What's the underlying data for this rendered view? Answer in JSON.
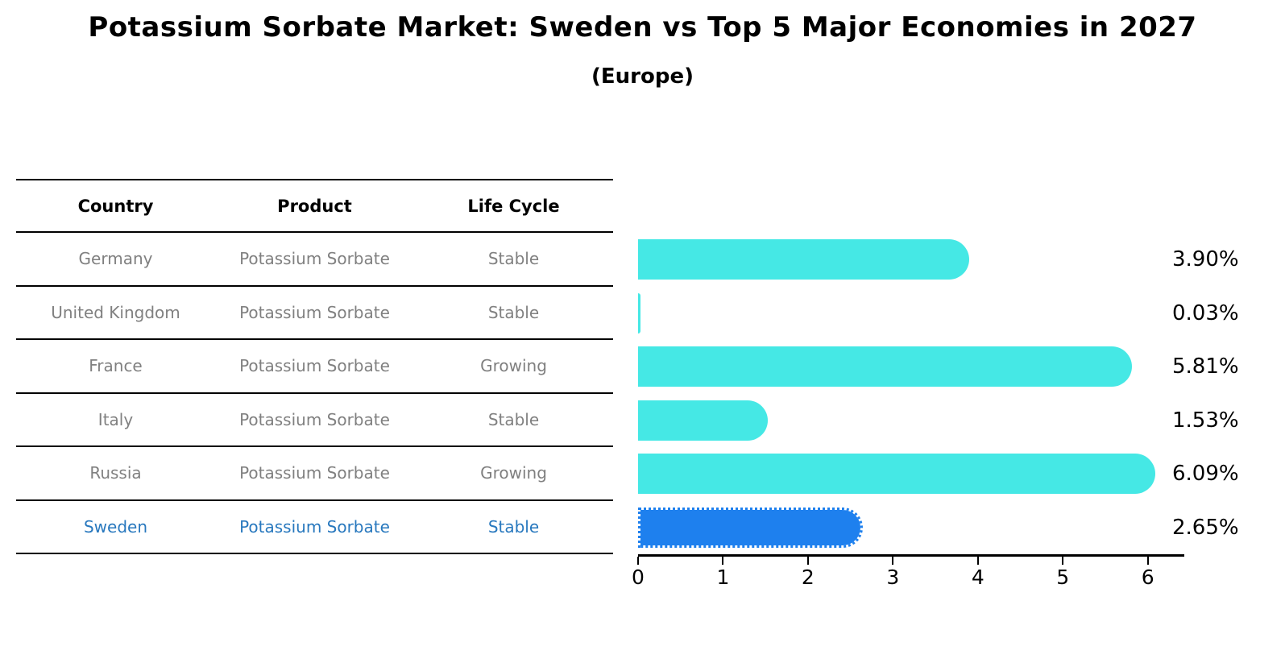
{
  "title": "Potassium Sorbate Market: Sweden vs Top 5 Major Economies in 2027",
  "subtitle": "(Europe)",
  "table": {
    "headers": [
      "Country",
      "Product",
      "Life Cycle"
    ],
    "rows": [
      {
        "country": "Germany",
        "product": "Potassium Sorbate",
        "life_cycle": "Stable",
        "highlight": false
      },
      {
        "country": "United Kingdom",
        "product": "Potassium Sorbate",
        "life_cycle": "Stable",
        "highlight": false
      },
      {
        "country": "France",
        "product": "Potassium Sorbate",
        "life_cycle": "Growing",
        "highlight": false
      },
      {
        "country": "Italy",
        "product": "Potassium Sorbate",
        "life_cycle": "Stable",
        "highlight": false
      },
      {
        "country": "Russia",
        "product": "Potassium Sorbate",
        "life_cycle": "Growing",
        "highlight": false
      },
      {
        "country": "Sweden",
        "product": "Potassium Sorbate",
        "life_cycle": "Stable",
        "highlight": true
      }
    ]
  },
  "chart_data": {
    "type": "bar",
    "orientation": "horizontal",
    "title": "Potassium Sorbate Market: Sweden vs Top 5 Major Economies in 2027 (Europe)",
    "categories": [
      "Germany",
      "United Kingdom",
      "France",
      "Italy",
      "Russia",
      "Sweden"
    ],
    "values": [
      3.9,
      0.03,
      5.81,
      1.53,
      6.09,
      2.65
    ],
    "value_labels": [
      "3.90%",
      "0.03%",
      "5.81%",
      "1.53%",
      "6.09%",
      "2.65%"
    ],
    "x_ticks": [
      "0",
      "1",
      "2",
      "3",
      "4",
      "5",
      "6"
    ],
    "xlim": [
      0,
      6.43
    ],
    "grid": false,
    "legend": "none",
    "highlight_index": 5
  },
  "colors": {
    "bar": "#45E8E5",
    "highlight_bar": "#1E80EE",
    "highlight_text": "#2878BE",
    "table_text": "#808080",
    "axis": "#000000"
  }
}
